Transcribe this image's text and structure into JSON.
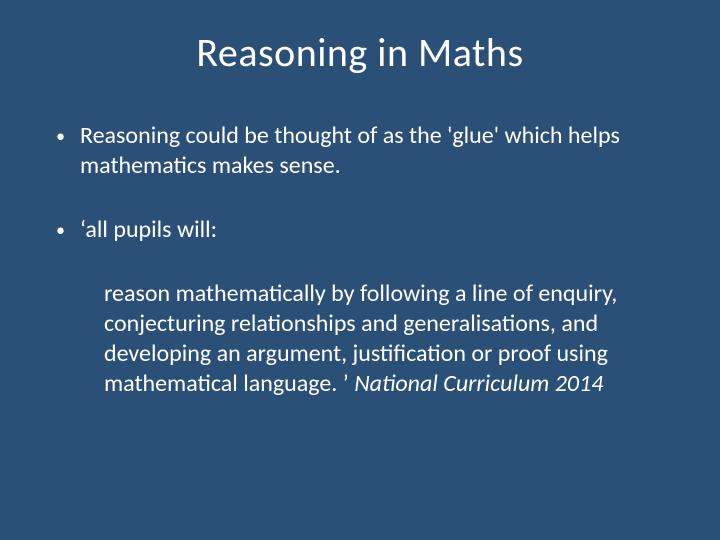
{
  "slide": {
    "background_color": "#2a5078",
    "text_color": "#ffffff",
    "title": "Reasoning in Maths",
    "title_fontsize": 40,
    "body_fontsize": 24,
    "bullets": [
      {
        "text": "Reasoning could be thought of as the 'glue' which helps mathematics makes sense."
      },
      {
        "text": "‘all pupils will:",
        "continuation": {
          "regular": "reason mathematically by following a line of enquiry, conjecturing relationships and generalisations, and developing an argument, justification or proof using mathematical language. ’ ",
          "italic": "National Curriculum 2014"
        }
      }
    ]
  }
}
